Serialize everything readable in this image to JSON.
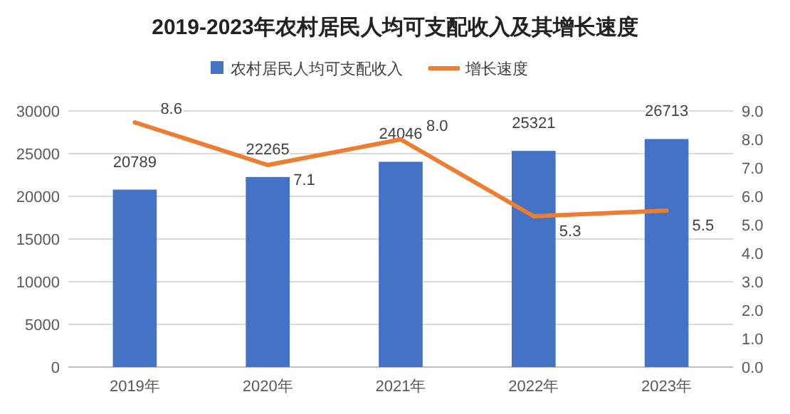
{
  "chart_data": {
    "type": "bar",
    "title": "2019-2023年农村居民人均可支配收入及其增长速度",
    "categories": [
      "2019年",
      "2020年",
      "2021年",
      "2022年",
      "2023年"
    ],
    "series": [
      {
        "name": "农村居民人均可支配收入",
        "color": "#4472c4",
        "values": [
          20789,
          22265,
          24046,
          25321,
          26713
        ],
        "value_labels": [
          "20789",
          "22265",
          "24046",
          "25321",
          "26713"
        ]
      },
      {
        "name": "增长速度",
        "type": "line",
        "axis": "y2",
        "color": "#ed7d31",
        "values": [
          8.6,
          7.1,
          8.0,
          5.3,
          5.5
        ],
        "value_labels": [
          "8.6",
          "7.1",
          "8.0",
          "5.3",
          "5.5"
        ]
      }
    ],
    "ylim": [
      0,
      30000
    ],
    "yticks": [
      0,
      5000,
      10000,
      15000,
      20000,
      25000,
      30000
    ],
    "y2lim": [
      0,
      9
    ],
    "y2ticks": [
      {
        "value": 0,
        "label": "0.0"
      },
      {
        "value": 1,
        "label": "1.0"
      },
      {
        "value": 2,
        "label": "2.0"
      },
      {
        "value": 3,
        "label": "3.0"
      },
      {
        "value": 4,
        "label": "4.0"
      },
      {
        "value": 5,
        "label": "5.0"
      },
      {
        "value": 6,
        "label": "6.0"
      },
      {
        "value": 7,
        "label": "7.0"
      },
      {
        "value": 8,
        "label": "8.0"
      },
      {
        "value": 9,
        "label": "9.0"
      }
    ],
    "grid": "y",
    "legend": "top",
    "marker": "none"
  }
}
